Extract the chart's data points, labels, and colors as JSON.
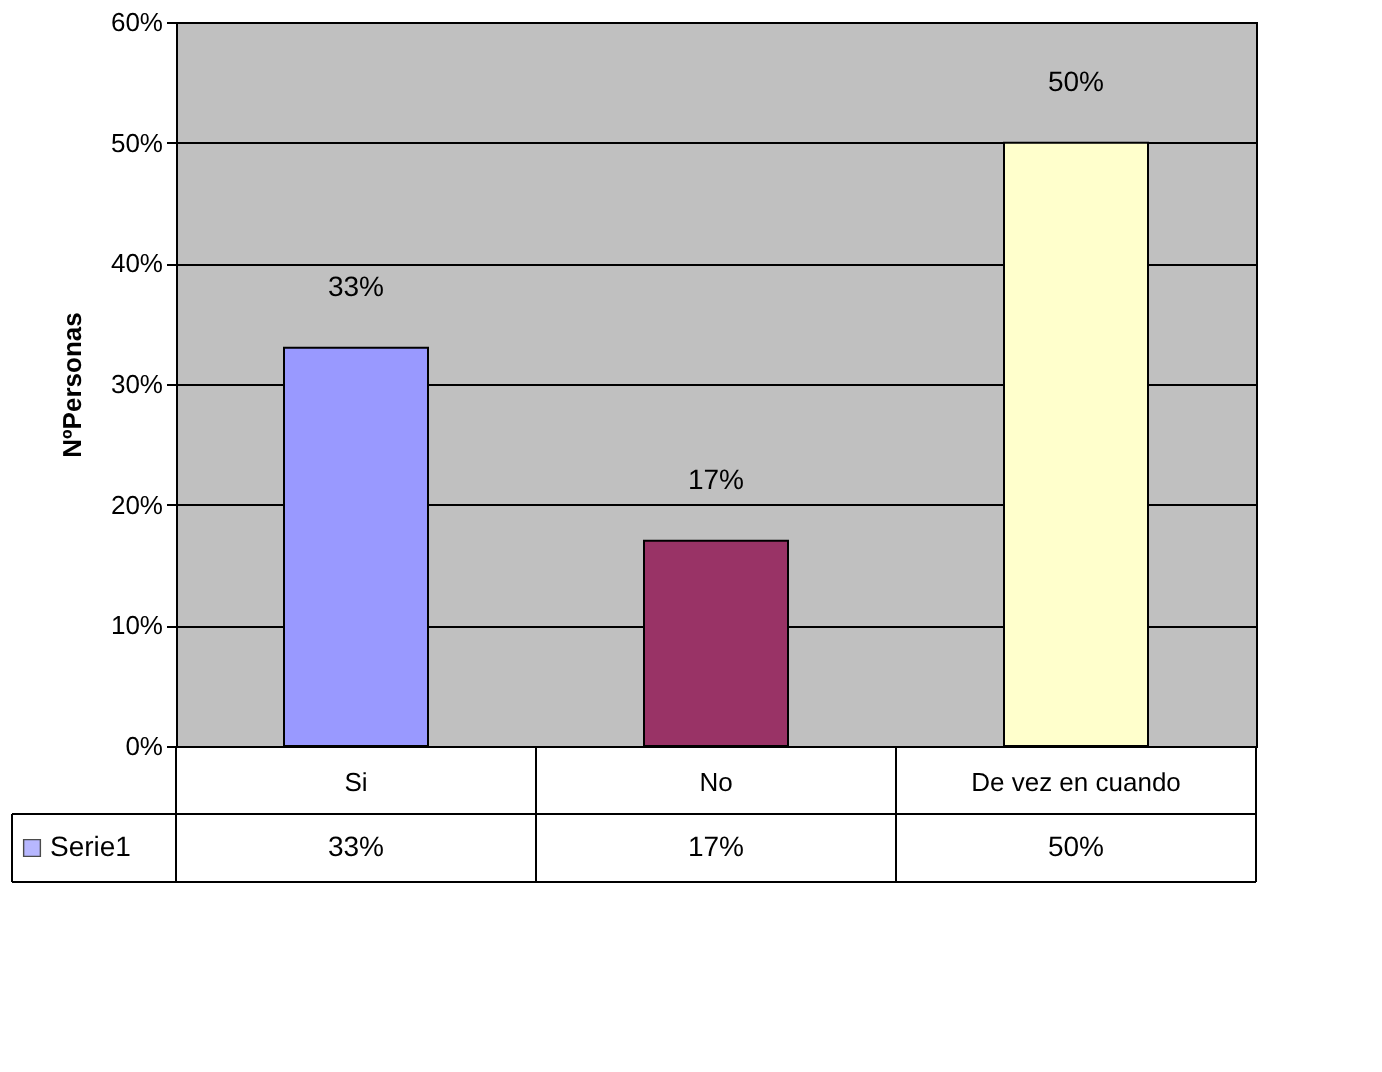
{
  "chart_data": {
    "type": "bar",
    "ylabel": "NºPersonas",
    "categories": [
      "Si",
      "No",
      "De vez en cuando"
    ],
    "series": [
      {
        "name": "Serie1",
        "colors": [
          "#9999ff",
          "#993366",
          "#ffffcc"
        ],
        "values": [
          33,
          17,
          50
        ]
      }
    ],
    "value_labels": [
      "33%",
      "17%",
      "50%"
    ],
    "ylim": [
      0,
      60
    ],
    "yticks": [
      {
        "value": 0,
        "label": "0%"
      },
      {
        "value": 10,
        "label": "10%"
      },
      {
        "value": 20,
        "label": "20%"
      },
      {
        "value": 30,
        "label": "30%"
      },
      {
        "value": 40,
        "label": "40%"
      },
      {
        "value": 50,
        "label": "50%"
      },
      {
        "value": 60,
        "label": "60%"
      }
    ],
    "grid": "y",
    "legend": "bottom"
  }
}
